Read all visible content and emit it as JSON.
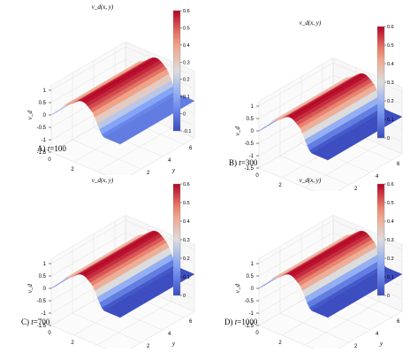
{
  "chart_data": [
    {
      "type": "surface",
      "panel": "A)",
      "caption_prefix": "A) ",
      "caption_var": "t",
      "caption_value": "=100",
      "title": "v_d(x, y)",
      "xlabel": "x",
      "ylabel": "y",
      "zlabel": "v_d",
      "xlim": [
        0,
        6
      ],
      "ylim": [
        0,
        7
      ],
      "zlim": [
        -1.5,
        1.2
      ],
      "xticks": [
        "0",
        "2",
        "4",
        "6"
      ],
      "yticks": [
        "0",
        "2",
        "4",
        "6"
      ],
      "zticks": [
        "-1.5",
        "-1",
        "-0.5",
        "0",
        "0.5",
        "1"
      ],
      "colorbar": {
        "min": -0.1,
        "max": 0.6,
        "ticks": [
          "0.6",
          "0.5",
          "0.4",
          "0.3",
          "0.2",
          "0.1",
          "0",
          "-0.1"
        ]
      },
      "peak_value": 0.6,
      "front_position_x": 4.0,
      "baseline": 0.0
    },
    {
      "type": "surface",
      "panel": "B)",
      "caption_prefix": "B) ",
      "caption_var": "t",
      "caption_value": "=300",
      "title": "v_d(x, y)",
      "xlabel": "x",
      "ylabel": "y",
      "zlabel": "v_d",
      "xlim": [
        0,
        6
      ],
      "ylim": [
        0,
        7
      ],
      "zlim": [
        -1.5,
        1.2
      ],
      "xticks": [
        "0",
        "2",
        "4",
        "6"
      ],
      "yticks": [
        "0",
        "2",
        "4",
        "6"
      ],
      "zticks": [
        "-1.5",
        "-1",
        "-0.5",
        "0",
        "0.5",
        "1"
      ],
      "colorbar": {
        "min": 0,
        "max": 0.6,
        "ticks": [
          "0.6",
          "0.5",
          "0.4",
          "0.3",
          "0.2",
          "0.1",
          "0"
        ]
      },
      "peak_value": 0.6,
      "front_position_x": 4.0,
      "baseline": 0.0
    },
    {
      "type": "surface",
      "panel": "C)",
      "caption_prefix": "C) ",
      "caption_var": "t",
      "caption_value": "=700",
      "title": "v_d(x, y)",
      "xlabel": "x",
      "ylabel": "y",
      "zlabel": "v_d",
      "xlim": [
        0,
        6
      ],
      "ylim": [
        0,
        7
      ],
      "zlim": [
        -1.5,
        1.2
      ],
      "xticks": [
        "0",
        "2",
        "4",
        "6"
      ],
      "yticks": [
        "0",
        "2",
        "4",
        "6"
      ],
      "zticks": [
        "-1.5",
        "-1",
        "-0.5",
        "0",
        "0.5",
        "1"
      ],
      "colorbar": {
        "min": 0,
        "max": 0.6,
        "ticks": [
          "0.6",
          "0.5",
          "0.4",
          "0.3",
          "0.2",
          "0.1",
          "0"
        ]
      },
      "peak_value": 0.6,
      "front_position_x": 4.0,
      "baseline": 0.0
    },
    {
      "type": "surface",
      "panel": "D)",
      "caption_prefix": "D) ",
      "caption_var": "t",
      "caption_value": "=1000",
      "title": "v_d(x, y)",
      "xlabel": "x",
      "ylabel": "y",
      "zlabel": "v_d",
      "xlim": [
        0,
        6
      ],
      "ylim": [
        0,
        7
      ],
      "zlim": [
        -1.5,
        1.2
      ],
      "xticks": [
        "0",
        "2",
        "4",
        "6"
      ],
      "yticks": [
        "0",
        "2",
        "4",
        "6"
      ],
      "zticks": [
        "-1.5",
        "-1",
        "-0.5",
        "0",
        "0.5",
        "1"
      ],
      "colorbar": {
        "min": 0,
        "max": 0.6,
        "ticks": [
          "0.6",
          "0.5",
          "0.4",
          "0.3",
          "0.2",
          "0.1",
          "0"
        ]
      },
      "peak_value": 0.6,
      "front_position_x": 4.0,
      "baseline": 0.0
    }
  ],
  "colors": {
    "low": "#3b4cc0",
    "mid": "#dddddd",
    "high": "#b40426",
    "grid": "#e6e6e6",
    "axis": "#000000"
  }
}
